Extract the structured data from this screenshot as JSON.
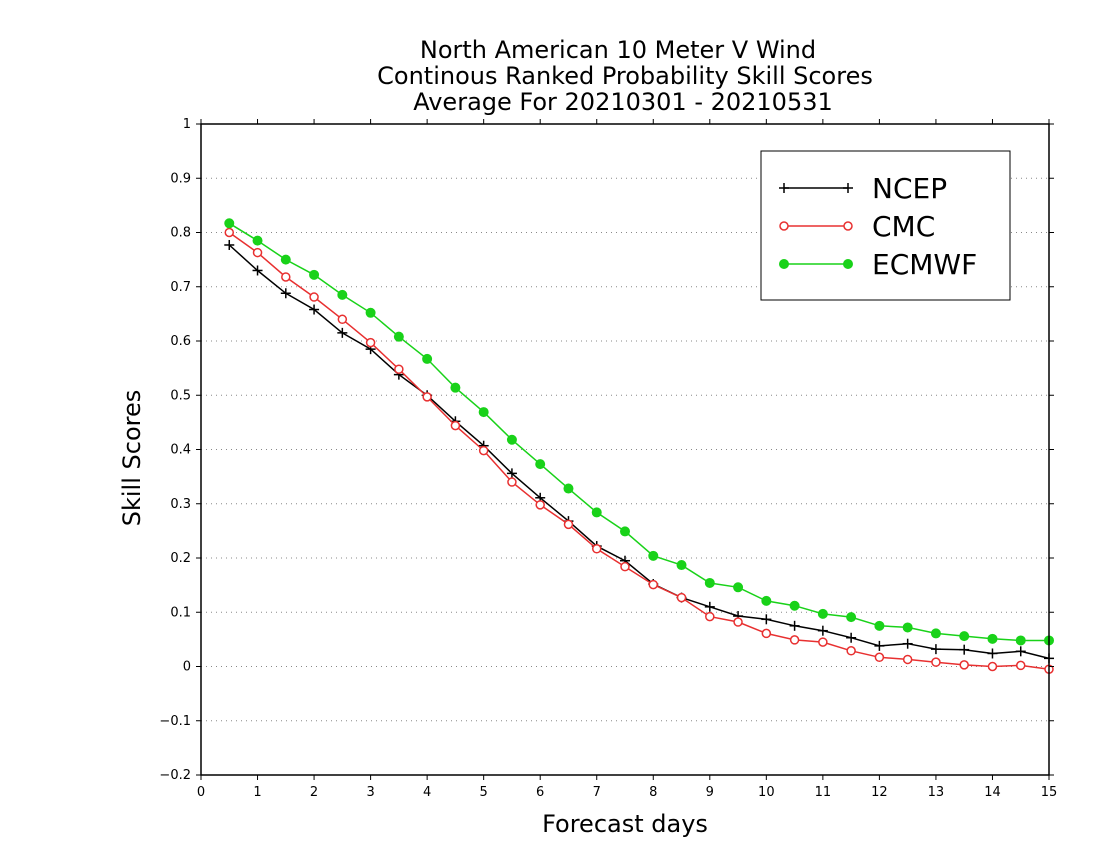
{
  "chart_data": {
    "type": "line",
    "title_lines": [
      "North American 10 Meter V Wind",
      "Continous Ranked Probability Skill Scores",
      "Average For 20210301 - 20210531"
    ],
    "xlabel": "Forecast days",
    "ylabel": "Skill Scores",
    "xlim": [
      0,
      15
    ],
    "ylim": [
      -0.2,
      1
    ],
    "x_ticks": [
      "0",
      "1",
      "2",
      "3",
      "4",
      "5",
      "6",
      "7",
      "8",
      "9",
      "10",
      "11",
      "12",
      "13",
      "14",
      "15"
    ],
    "y_ticks": [
      "−0.2",
      "−0.1",
      "0",
      "0.1",
      "0.2",
      "0.3",
      "0.4",
      "0.5",
      "0.6",
      "0.7",
      "0.8",
      "0.9",
      "1"
    ],
    "grid": "horizontal dotted",
    "legend_position": "top-right",
    "x": [
      0.5,
      1,
      1.5,
      2,
      2.5,
      3,
      3.5,
      4,
      4.5,
      5,
      5.5,
      6,
      6.5,
      7,
      7.5,
      8,
      8.5,
      9,
      9.5,
      10,
      10.5,
      11,
      11.5,
      12,
      12.5,
      13,
      13.5,
      14,
      14.5,
      15
    ],
    "series": [
      {
        "name": "NCEP",
        "color": "#000000",
        "marker": "plus",
        "values": [
          0.777,
          0.73,
          0.688,
          0.658,
          0.615,
          0.585,
          0.538,
          0.5,
          0.452,
          0.407,
          0.356,
          0.311,
          0.268,
          0.222,
          0.195,
          0.152,
          0.127,
          0.11,
          0.093,
          0.087,
          0.075,
          0.066,
          0.053,
          0.038,
          0.042,
          0.032,
          0.031,
          0.024,
          0.028,
          0.015
        ]
      },
      {
        "name": "CMC",
        "color": "#e83030",
        "marker": "open-circle",
        "values": [
          0.8,
          0.763,
          0.718,
          0.681,
          0.64,
          0.597,
          0.548,
          0.497,
          0.444,
          0.398,
          0.34,
          0.298,
          0.262,
          0.217,
          0.184,
          0.151,
          0.127,
          0.092,
          0.082,
          0.061,
          0.049,
          0.045,
          0.029,
          0.017,
          0.013,
          0.008,
          0.003,
          0.0,
          0.002,
          -0.005
        ]
      },
      {
        "name": "ECMWF",
        "color": "#19d219",
        "marker": "filled-circle",
        "values": [
          0.817,
          0.785,
          0.75,
          0.722,
          0.685,
          0.652,
          0.608,
          0.567,
          0.514,
          0.469,
          0.418,
          0.373,
          0.328,
          0.284,
          0.249,
          0.204,
          0.187,
          0.154,
          0.146,
          0.121,
          0.112,
          0.097,
          0.091,
          0.075,
          0.072,
          0.061,
          0.056,
          0.051,
          0.048,
          0.048
        ]
      }
    ]
  }
}
